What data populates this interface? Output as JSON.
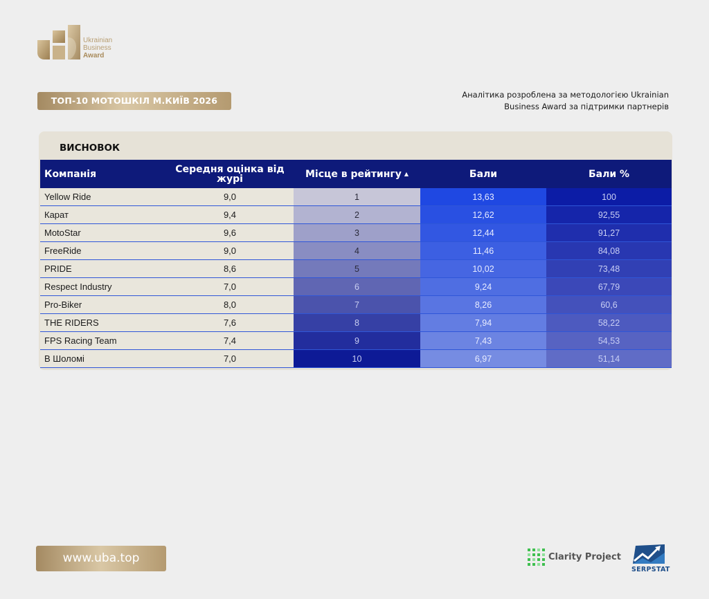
{
  "brand": {
    "logo_lines": [
      "Ukrainian",
      "Business",
      "Award"
    ],
    "gold": "#b89e72"
  },
  "header": {
    "title": "ТОП-10 МОТОШКІЛ М.КИЇВ 2026",
    "analytics_line1": "Аналітика розроблена за методологією Ukrainian",
    "analytics_line2": "Business Award за підтримки партнерів"
  },
  "card": {
    "title": "ВИСНОВОК",
    "columns": [
      "Компанія",
      "Середня оцінка від журі",
      "Місце в рейтингу",
      "Бали",
      "Бали %"
    ],
    "sort_icon": "triangle-up-icon",
    "rows": [
      {
        "company": "Yellow Ride",
        "score": "9,0",
        "rank": "1",
        "points": "13,63",
        "percent": "100"
      },
      {
        "company": "Карат",
        "score": "9,4",
        "rank": "2",
        "points": "12,62",
        "percent": "92,55"
      },
      {
        "company": "MotoStar",
        "score": "9,6",
        "rank": "3",
        "points": "12,44",
        "percent": "91,27"
      },
      {
        "company": "FreeRide",
        "score": "9,0",
        "rank": "4",
        "points": "11,46",
        "percent": "84,08"
      },
      {
        "company": "PRIDE",
        "score": "8,6",
        "rank": "5",
        "points": "10,02",
        "percent": "73,48"
      },
      {
        "company": "Respect Industry",
        "score": "7,0",
        "rank": "6",
        "points": "9,24",
        "percent": "67,79"
      },
      {
        "company": "Pro-Biker",
        "score": "8,0",
        "rank": "7",
        "points": "8,26",
        "percent": "60,6"
      },
      {
        "company": "THE RIDERS",
        "score": "7,6",
        "rank": "8",
        "points": "7,94",
        "percent": "58,22"
      },
      {
        "company": "FPS Racing Team",
        "score": "7,4",
        "rank": "9",
        "points": "7,43",
        "percent": "54,53"
      },
      {
        "company": "В Шоломі",
        "score": "7,0",
        "rank": "10",
        "points": "6,97",
        "percent": "51,14"
      }
    ],
    "header_color": "#0e1a7a"
  },
  "footer": {
    "url": "www.uba.top",
    "partner1": "Clarity Project",
    "partner2": "SERPSTAT",
    "partner1_icon": "clarity-grid-icon",
    "partner2_icon": "serpstat-chart-icon"
  }
}
